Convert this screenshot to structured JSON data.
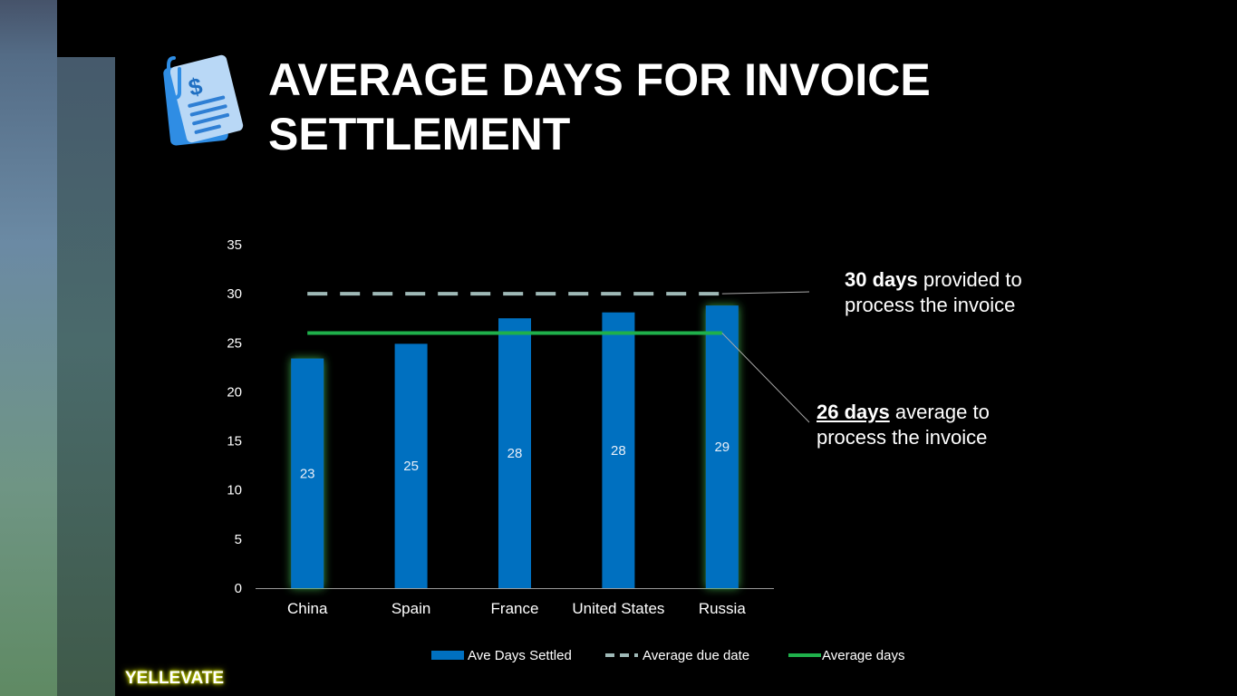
{
  "slide": {
    "title_line1": "AVERAGE DAYS FOR INVOICE",
    "title_line2": "SETTLEMENT",
    "icon": "invoice-dollar-icon",
    "brand": "YELLEVATE"
  },
  "annotations": {
    "due": {
      "bold": "30 days",
      "rest_line1": " provided to",
      "line2": "process the invoice"
    },
    "avg": {
      "bold": "26 days",
      "rest_line1": " average to",
      "line2": "process the invoice"
    }
  },
  "colors": {
    "bar": "#0070c0",
    "due_line": "#9fb9b7",
    "avg_line": "#1fb04b",
    "glow": "#3fae4a",
    "brand_glow": "#c8d400"
  },
  "chart_data": {
    "type": "bar",
    "categories": [
      "China",
      "Spain",
      "France",
      "United States",
      "Russia"
    ],
    "series": [
      {
        "name": "Ave Days Settled",
        "type": "bar",
        "values": [
          23.4,
          24.9,
          27.5,
          28.1,
          28.8
        ],
        "labels": [
          "23",
          "25",
          "28",
          "28",
          "29"
        ]
      },
      {
        "name": "Average due date",
        "type": "line",
        "style": "dashed",
        "values": [
          30,
          30,
          30,
          30,
          30
        ]
      },
      {
        "name": "Average days",
        "type": "line",
        "style": "solid",
        "values": [
          26,
          26,
          26,
          26,
          26
        ]
      }
    ],
    "yticks": [
      "0",
      "5",
      "10",
      "15",
      "20",
      "25",
      "30",
      "35"
    ],
    "ylim": [
      0,
      35
    ],
    "grid": false,
    "legend": "bottom"
  }
}
